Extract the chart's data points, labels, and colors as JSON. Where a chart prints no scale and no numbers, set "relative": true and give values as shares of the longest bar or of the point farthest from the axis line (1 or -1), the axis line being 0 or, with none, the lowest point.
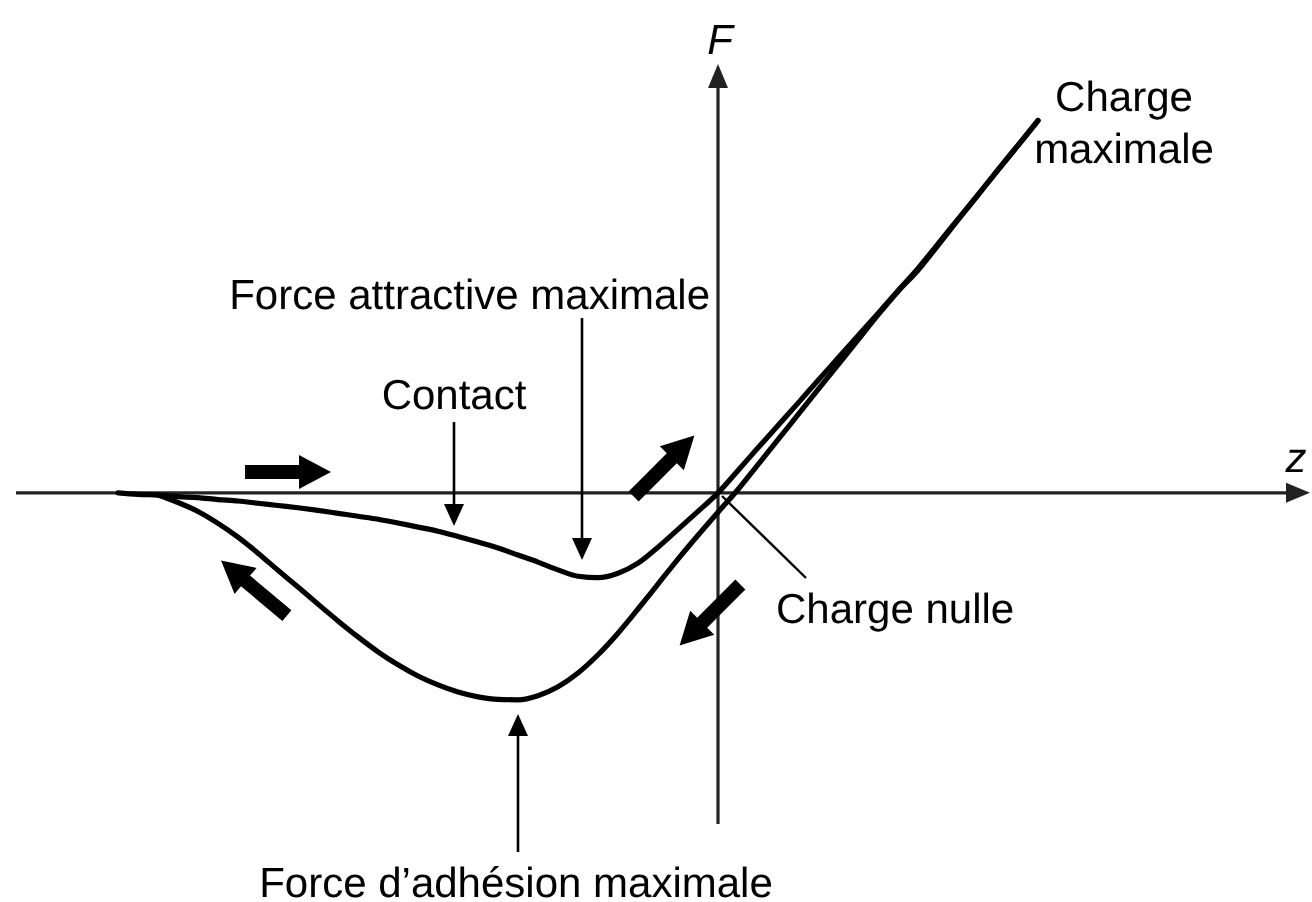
{
  "chart_data": {
    "type": "line",
    "relative": true,
    "ylabel": "F",
    "categories": [
      null,
      null,
      null,
      null,
      null,
      null,
      null,
      null,
      null,
      null,
      null,
      null,
      null,
      null,
      null,
      null,
      null,
      null,
      null,
      null,
      null,
      null,
      null,
      null,
      null,
      null,
      null,
      null,
      null,
      null,
      null,
      null,
      null,
      null,
      null,
      null,
      null,
      null,
      null,
      null,
      null,
      null,
      null,
      null,
      null,
      null,
      null
    ],
    "series": [
      {
        "color": "#000000",
        "values": [
          0,
          -0.004,
          -0.006,
          -0.01,
          -0.013,
          -0.018,
          -0.022,
          -0.028,
          -0.034,
          -0.04,
          -0.047,
          -0.055,
          -0.063,
          -0.071,
          -0.081,
          -0.092,
          -0.103,
          -0.117,
          -0.132,
          -0.148,
          -0.167,
          -0.186,
          -0.207,
          -0.224,
          -0.228,
          -0.216,
          -0.189,
          -0.146,
          -0.098,
          -0.05,
          0,
          0.06,
          0.121,
          0.181,
          0.241,
          0.302,
          0.362,
          0.422,
          0.482,
          0.543,
          0.603,
          0.669,
          0.735,
          0.801,
          0.868,
          0.934,
          1
        ]
      },
      {
        "color": "#000000",
        "values": [
          null,
          null,
          -0.006,
          -0.026,
          -0.05,
          -0.082,
          -0.119,
          -0.162,
          -0.208,
          -0.253,
          -0.299,
          -0.344,
          -0.387,
          -0.427,
          -0.462,
          -0.492,
          -0.516,
          -0.535,
          -0.548,
          -0.555,
          -0.556,
          -0.545,
          -0.521,
          -0.484,
          -0.435,
          -0.377,
          -0.312,
          -0.245,
          -0.178,
          -0.114,
          -0.052,
          0.009,
          0.076,
          0.143,
          0.21,
          0.277,
          0.344,
          0.411,
          0.478,
          0.541,
          0.598,
          0.665,
          0.733,
          0.8,
          0.867,
          0.933,
          1
        ]
      }
    ],
    "annotations": [
      "Force attractive maximale",
      "Contact",
      "Charge\nmaximale",
      "Charge nulle",
      "Force d’adhésion maximale",
      "z"
    ]
  }
}
